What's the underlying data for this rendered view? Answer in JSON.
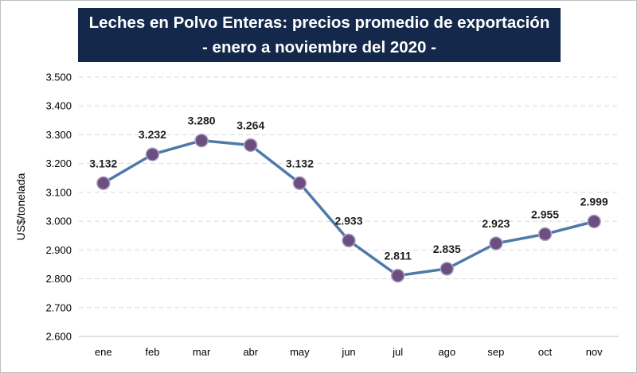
{
  "chart_data": {
    "type": "line",
    "title": "Leches en Polvo Enteras: precios promedio de exportación",
    "subtitle": "- enero a noviembre del 2020 -",
    "ylabel": "US$/tonelada",
    "xlabel": "",
    "categories": [
      "ene",
      "feb",
      "mar",
      "abr",
      "may",
      "jun",
      "jul",
      "ago",
      "sep",
      "oct",
      "nov"
    ],
    "values": [
      3132,
      3232,
      3280,
      3264,
      3132,
      2933,
      2811,
      2835,
      2923,
      2955,
      2999
    ],
    "value_labels": [
      "3.132",
      "3.232",
      "3.280",
      "3.264",
      "3.132",
      "2.933",
      "2.811",
      "2.835",
      "2.923",
      "2.955",
      "2.999"
    ],
    "ylim": [
      2600,
      3500
    ],
    "yticks": [
      2600,
      2700,
      2800,
      2900,
      3000,
      3100,
      3200,
      3300,
      3400,
      3500
    ],
    "ytick_labels": [
      "2.600",
      "2.700",
      "2.800",
      "2.900",
      "3.000",
      "3.100",
      "3.200",
      "3.300",
      "3.400",
      "3.500"
    ],
    "grid": true,
    "legend": "none",
    "colors": {
      "line": "#4f79a8",
      "marker_fill": "#6b4f80",
      "marker_edge": "#b3a6c4",
      "grid": "#d9d9d9",
      "title_bg": "#14284b"
    }
  }
}
